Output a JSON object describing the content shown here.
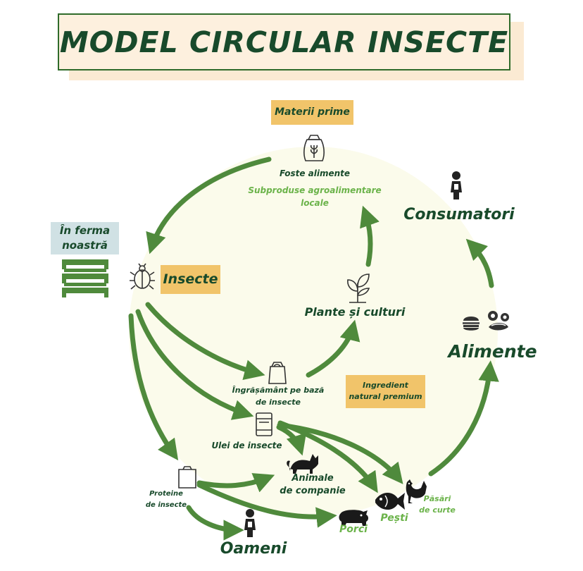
{
  "title": "MODEL CIRCULAR INSECTE",
  "tags": {
    "materii_prime": "Materii prime",
    "in_ferma_line1": "În ferma",
    "in_ferma_line2": "noastră",
    "insecte": "Insecte",
    "ingredient_line1": "Ingredient",
    "ingredient_line2": "natural premium"
  },
  "labels": {
    "foste_alimente": "Foste alimente",
    "subproduse_line1": "Subproduse agroalimentare",
    "subproduse_line2": "locale",
    "consumatori": "Consumatori",
    "plante": "Plante și culturi",
    "alimente": "Alimente",
    "ingrasamant_line1": "Îngrășământ pe bază",
    "ingrasamant_line2": "de insecte",
    "ulei": "Ulei de insecte",
    "animale_line1": "Animale",
    "animale_line2": "de companie",
    "proteine_line1": "Proteine",
    "proteine_line2": "de insecte",
    "porci": "Porci",
    "pesti": "Pești",
    "pasari_line1": "Păsări",
    "pasari_line2": "de curte",
    "oameni": "Oameni"
  },
  "colors": {
    "arrow": "#4f8a3c",
    "dark_text": "#184a2b",
    "green_text": "#6bb34a",
    "tag_bg": "#f1c46a",
    "ferma_bg": "#d0e1e4",
    "circle_bg": "#fbfbeb"
  },
  "icons": [
    "grain-sack-icon",
    "beetle-icon",
    "plant-icon",
    "person-icon",
    "burger-icon",
    "sushi-icon",
    "fertilizer-bag-icon",
    "oil-barrel-icon",
    "protein-bag-icon",
    "cat-icon",
    "pig-icon",
    "fish-icon",
    "chicken-icon",
    "farm-tray-icon"
  ]
}
